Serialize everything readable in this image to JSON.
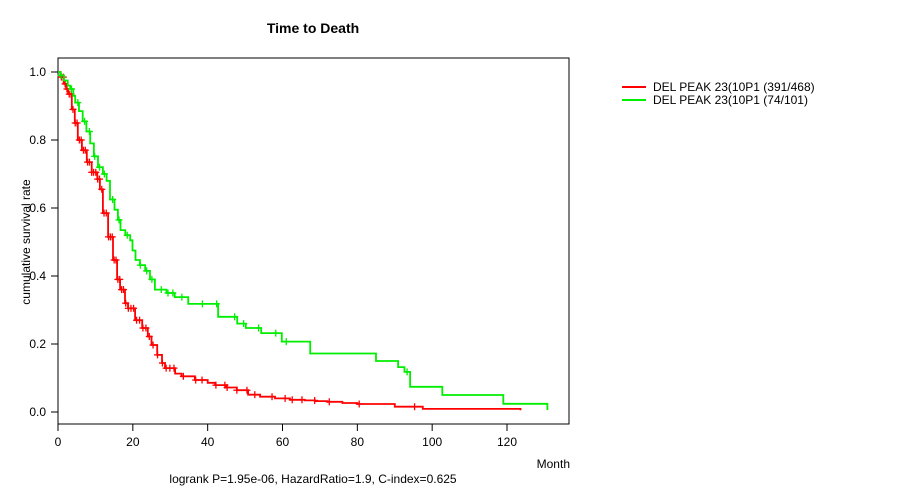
{
  "legend": {
    "items": [
      {
        "label": "DEL PEAK 23(10P1 (391/468)",
        "color": "#ff0000"
      },
      {
        "label": "DEL PEAK 23(10P1 (74/101)",
        "color": "#00ee00"
      }
    ]
  },
  "chart_data": {
    "type": "line",
    "subtype": "kaplan-meier-step-survival",
    "title": "Time to Death",
    "xlabel": "Month",
    "ylabel": "cumulative survival rate",
    "annotation": "logrank P=1.95e-06, HazardRatio=1.9, C-index=0.625",
    "xlim": [
      0,
      136
    ],
    "ylim": [
      0.0,
      1.0
    ],
    "xticks": [
      0,
      20,
      40,
      60,
      80,
      100,
      120
    ],
    "yticks": [
      0.0,
      0.2,
      0.4,
      0.6,
      0.8,
      1.0
    ],
    "grid": false,
    "legend_position": "top-right-outside",
    "series": [
      {
        "name": "DEL PEAK 23(10P1 (391/468)",
        "color": "#ff0000",
        "steps": [
          [
            0,
            1.0
          ],
          [
            0.7,
            0.985
          ],
          [
            1.5,
            0.965
          ],
          [
            2.2,
            0.95
          ],
          [
            2.7,
            0.935
          ],
          [
            3.7,
            0.89
          ],
          [
            4.5,
            0.85
          ],
          [
            5.3,
            0.8
          ],
          [
            6.4,
            0.77
          ],
          [
            7.7,
            0.735
          ],
          [
            9.0,
            0.705
          ],
          [
            10.5,
            0.685
          ],
          [
            11.2,
            0.655
          ],
          [
            12.0,
            0.585
          ],
          [
            13.4,
            0.515
          ],
          [
            14.7,
            0.447
          ],
          [
            15.8,
            0.39
          ],
          [
            16.6,
            0.36
          ],
          [
            17.9,
            0.32
          ],
          [
            18.7,
            0.305
          ],
          [
            20.6,
            0.27
          ],
          [
            22.5,
            0.247
          ],
          [
            24.0,
            0.222
          ],
          [
            25.0,
            0.197
          ],
          [
            26.5,
            0.168
          ],
          [
            27.8,
            0.144
          ],
          [
            28.6,
            0.129
          ],
          [
            31.3,
            0.113
          ],
          [
            33.0,
            0.105
          ],
          [
            36.6,
            0.094
          ],
          [
            40.0,
            0.086
          ],
          [
            42.0,
            0.079
          ],
          [
            45.0,
            0.072
          ],
          [
            47.8,
            0.064
          ],
          [
            50.8,
            0.051
          ],
          [
            54.0,
            0.045
          ],
          [
            58.0,
            0.04
          ],
          [
            62.0,
            0.036
          ],
          [
            66.0,
            0.034
          ],
          [
            68.7,
            0.032
          ],
          [
            72.0,
            0.03
          ],
          [
            76.0,
            0.0265
          ],
          [
            80.0,
            0.0235
          ],
          [
            90.0,
            0.0155
          ],
          [
            97.5,
            0.009
          ],
          [
            123.0,
            0.009
          ],
          [
            123.6,
            0.005
          ]
        ],
        "censor_months": [
          0.9,
          1.4,
          1.9,
          2.4,
          3.0,
          3.5,
          4.0,
          4.6,
          5.1,
          5.7,
          6.2,
          6.8,
          7.3,
          7.9,
          8.4,
          9.0,
          9.5,
          10.1,
          10.6,
          11.1,
          11.7,
          12.3,
          12.9,
          13.5,
          14.0,
          14.5,
          15.0,
          15.5,
          16.0,
          16.5,
          17.0,
          17.5,
          18.1,
          18.8,
          19.5,
          20.2,
          21.0,
          21.8,
          22.7,
          23.5,
          24.4,
          25.4,
          26.6,
          27.9,
          28.9,
          29.9,
          31.0,
          33.5,
          36.8,
          38.5,
          42.2,
          44.6,
          45.2,
          47.8,
          50.5,
          52.6,
          57.2,
          60.7,
          62.6,
          65.2,
          68.6,
          72.5,
          80.5,
          95.3
        ]
      },
      {
        "name": "DEL PEAK 23(10P1 (74/101)",
        "color": "#00ee00",
        "steps": [
          [
            0,
            1.0
          ],
          [
            0.6,
            0.99
          ],
          [
            1.6,
            0.975
          ],
          [
            2.6,
            0.96
          ],
          [
            3.3,
            0.95
          ],
          [
            4.1,
            0.93
          ],
          [
            4.6,
            0.91
          ],
          [
            5.6,
            0.885
          ],
          [
            6.6,
            0.855
          ],
          [
            7.6,
            0.825
          ],
          [
            8.6,
            0.79
          ],
          [
            9.6,
            0.752
          ],
          [
            10.7,
            0.72
          ],
          [
            12.0,
            0.7
          ],
          [
            13.0,
            0.68
          ],
          [
            13.9,
            0.625
          ],
          [
            15.1,
            0.595
          ],
          [
            16.0,
            0.565
          ],
          [
            16.7,
            0.535
          ],
          [
            18.0,
            0.52
          ],
          [
            19.3,
            0.505
          ],
          [
            19.9,
            0.475
          ],
          [
            20.7,
            0.447
          ],
          [
            21.9,
            0.432
          ],
          [
            23.3,
            0.415
          ],
          [
            24.6,
            0.39
          ],
          [
            25.9,
            0.36
          ],
          [
            29.0,
            0.35
          ],
          [
            31.2,
            0.338
          ],
          [
            34.8,
            0.318
          ],
          [
            42.8,
            0.28
          ],
          [
            47.9,
            0.26
          ],
          [
            50.2,
            0.247
          ],
          [
            54.3,
            0.232
          ],
          [
            59.8,
            0.207
          ],
          [
            67.4,
            0.172
          ],
          [
            85.0,
            0.15
          ],
          [
            90.9,
            0.132
          ],
          [
            92.6,
            0.118
          ],
          [
            94.1,
            0.074
          ],
          [
            102.7,
            0.05
          ],
          [
            119.0,
            0.024
          ],
          [
            130.8,
            0.006
          ]
        ],
        "censor_months": [
          0.8,
          3.6,
          5.3,
          7.1,
          8.4,
          9.8,
          11.1,
          12.4,
          14.6,
          16.3,
          18.5,
          22.0,
          23.7,
          25.1,
          27.6,
          29.4,
          30.7,
          33.1,
          38.6,
          42.4,
          47.2,
          49.6,
          53.6,
          58.2,
          61.0,
          93.3
        ]
      }
    ]
  }
}
